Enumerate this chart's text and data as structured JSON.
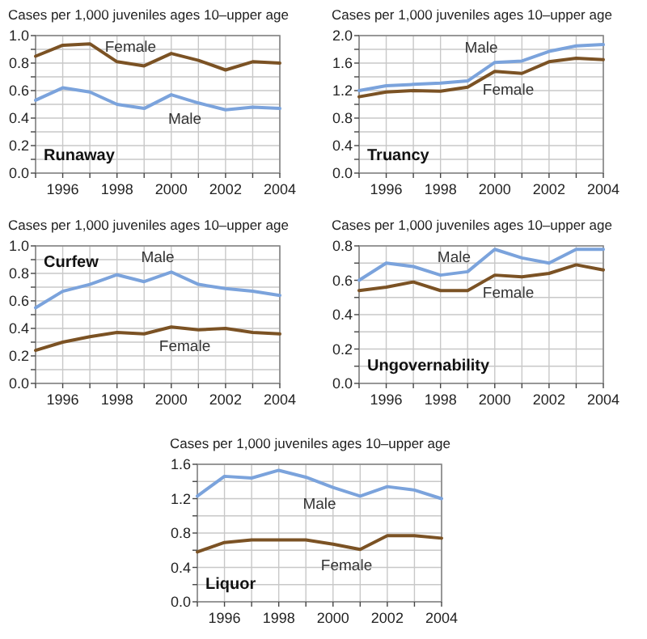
{
  "chart_data": [
    {
      "type": "line",
      "title": "Runaway",
      "ylabel": "Cases per 1,000 juveniles ages 10–upper age",
      "x": [
        1995,
        1996,
        1997,
        1998,
        1999,
        2000,
        2001,
        2002,
        2003,
        2004
      ],
      "xlim": [
        1995,
        2004
      ],
      "xticks": [
        {
          "value": 1995,
          "label": null
        },
        1996,
        {
          "value": 1997,
          "label": null
        },
        1998,
        {
          "value": 1999,
          "label": null
        },
        2000,
        {
          "value": 2001,
          "label": null
        },
        2002,
        {
          "value": 2003,
          "label": null
        },
        2004
      ],
      "ylim": [
        0,
        1
      ],
      "yticks": [
        {
          "value": 0,
          "label": "0.0"
        },
        {
          "value": 0.1,
          "label": null
        },
        {
          "value": 0.2,
          "label": "0.2"
        },
        {
          "value": 0.3,
          "label": null
        },
        {
          "value": 0.4,
          "label": "0.4"
        },
        {
          "value": 0.5,
          "label": null
        },
        {
          "value": 0.6,
          "label": "0.6"
        },
        {
          "value": 0.7,
          "label": null
        },
        {
          "value": 0.8,
          "label": "0.8"
        },
        {
          "value": 0.9,
          "label": null
        },
        {
          "value": 1,
          "label": "1.0"
        }
      ],
      "grid": true,
      "legend": false,
      "marker": "none",
      "series": [
        {
          "name": "Female",
          "color": "#7b5224",
          "values": [
            0.85,
            0.93,
            0.94,
            0.81,
            0.78,
            0.87,
            0.82,
            0.75,
            0.81,
            0.8
          ]
        },
        {
          "name": "Male",
          "color": "#7ba3dc",
          "values": [
            0.53,
            0.62,
            0.59,
            0.5,
            0.47,
            0.57,
            0.51,
            0.46,
            0.48,
            0.47
          ]
        }
      ]
    },
    {
      "type": "line",
      "title": "Truancy",
      "ylabel": "Cases per 1,000 juveniles ages 10–upper age",
      "x": [
        1995,
        1996,
        1997,
        1998,
        1999,
        2000,
        2001,
        2002,
        2003,
        2004
      ],
      "xlim": [
        1995,
        2004
      ],
      "xticks": [
        {
          "value": 1995,
          "label": null
        },
        1996,
        {
          "value": 1997,
          "label": null
        },
        1998,
        {
          "value": 1999,
          "label": null
        },
        2000,
        {
          "value": 2001,
          "label": null
        },
        2002,
        {
          "value": 2003,
          "label": null
        },
        2004
      ],
      "ylim": [
        0,
        2
      ],
      "yticks": [
        {
          "value": 0,
          "label": "0.0"
        },
        {
          "value": 0.2,
          "label": null
        },
        0.4,
        {
          "value": 0.6,
          "label": null
        },
        0.8,
        {
          "value": 1,
          "label": null
        },
        1.2,
        {
          "value": 1.4,
          "label": null
        },
        1.6,
        {
          "value": 1.8,
          "label": null
        },
        {
          "value": 2,
          "label": "2.0"
        }
      ],
      "grid": true,
      "legend": false,
      "marker": "none",
      "series": [
        {
          "name": "Male",
          "color": "#7ba3dc",
          "values": [
            1.2,
            1.27,
            1.29,
            1.31,
            1.34,
            1.61,
            1.63,
            1.77,
            1.85,
            1.87
          ]
        },
        {
          "name": "Female",
          "color": "#7b5224",
          "values": [
            1.11,
            1.18,
            1.2,
            1.19,
            1.25,
            1.48,
            1.45,
            1.62,
            1.67,
            1.65
          ]
        }
      ]
    },
    {
      "type": "line",
      "title": "Curfew",
      "ylabel": "Cases per 1,000 juveniles ages 10–upper age",
      "x": [
        1995,
        1996,
        1997,
        1998,
        1999,
        2000,
        2001,
        2002,
        2003,
        2004
      ],
      "xlim": [
        1995,
        2004
      ],
      "xticks": [
        {
          "value": 1995,
          "label": null
        },
        1996,
        {
          "value": 1997,
          "label": null
        },
        1998,
        {
          "value": 1999,
          "label": null
        },
        2000,
        {
          "value": 2001,
          "label": null
        },
        2002,
        {
          "value": 2003,
          "label": null
        },
        2004
      ],
      "ylim": [
        0,
        1
      ],
      "yticks": [
        {
          "value": 0,
          "label": "0.0"
        },
        {
          "value": 0.1,
          "label": null
        },
        0.2,
        {
          "value": 0.3,
          "label": null
        },
        0.4,
        {
          "value": 0.5,
          "label": null
        },
        0.6,
        {
          "value": 0.7,
          "label": null
        },
        0.8,
        {
          "value": 0.9,
          "label": null
        },
        {
          "value": 1,
          "label": "1.0"
        }
      ],
      "grid": true,
      "legend": false,
      "marker": "none",
      "series": [
        {
          "name": "Male",
          "color": "#7ba3dc",
          "values": [
            0.55,
            0.67,
            0.72,
            0.79,
            0.74,
            0.81,
            0.72,
            0.69,
            0.67,
            0.64
          ]
        },
        {
          "name": "Female",
          "color": "#7b5224",
          "values": [
            0.24,
            0.3,
            0.34,
            0.37,
            0.36,
            0.41,
            0.39,
            0.4,
            0.37,
            0.36
          ]
        }
      ]
    },
    {
      "type": "line",
      "title": "Ungovernability",
      "ylabel": "Cases per 1,000 juveniles ages 10–upper age",
      "x": [
        1995,
        1996,
        1997,
        1998,
        1999,
        2000,
        2001,
        2002,
        2003,
        2004
      ],
      "xlim": [
        1995,
        2004
      ],
      "xticks": [
        {
          "value": 1995,
          "label": null
        },
        1996,
        {
          "value": 1997,
          "label": null
        },
        1998,
        {
          "value": 1999,
          "label": null
        },
        2000,
        {
          "value": 2001,
          "label": null
        },
        2002,
        {
          "value": 2003,
          "label": null
        },
        2004
      ],
      "ylim": [
        0,
        0.8
      ],
      "yticks": [
        {
          "value": 0,
          "label": "0.0"
        },
        {
          "value": 0.1,
          "label": null
        },
        0.2,
        {
          "value": 0.3,
          "label": null
        },
        0.4,
        {
          "value": 0.5,
          "label": null
        },
        0.6,
        {
          "value": 0.7,
          "label": null
        },
        0.8
      ],
      "grid": true,
      "legend": false,
      "marker": "none",
      "series": [
        {
          "name": "Male",
          "color": "#7ba3dc",
          "values": [
            0.6,
            0.7,
            0.68,
            0.63,
            0.65,
            0.78,
            0.73,
            0.7,
            0.78,
            0.78
          ]
        },
        {
          "name": "Female",
          "color": "#7b5224",
          "values": [
            0.54,
            0.56,
            0.59,
            0.54,
            0.54,
            0.63,
            0.62,
            0.64,
            0.69,
            0.66
          ]
        }
      ]
    },
    {
      "type": "line",
      "title": "Liquor",
      "ylabel": "Cases per 1,000 juveniles ages 10–upper age",
      "x": [
        1995,
        1996,
        1997,
        1998,
        1999,
        2000,
        2001,
        2002,
        2003,
        2004
      ],
      "xlim": [
        1995,
        2004
      ],
      "xticks": [
        {
          "value": 1995,
          "label": null
        },
        1996,
        {
          "value": 1997,
          "label": null
        },
        1998,
        {
          "value": 1999,
          "label": null
        },
        2000,
        {
          "value": 2001,
          "label": null
        },
        2002,
        {
          "value": 2003,
          "label": null
        },
        2004
      ],
      "ylim": [
        0,
        1.6
      ],
      "yticks": [
        {
          "value": 0,
          "label": "0.0"
        },
        {
          "value": 0.2,
          "label": null
        },
        0.4,
        {
          "value": 0.6,
          "label": null
        },
        0.8,
        {
          "value": 1,
          "label": null
        },
        1.2,
        {
          "value": 1.4,
          "label": null
        },
        1.6
      ],
      "grid": true,
      "legend": false,
      "marker": "none",
      "series": [
        {
          "name": "Male",
          "color": "#7ba3dc",
          "values": [
            1.23,
            1.46,
            1.44,
            1.53,
            1.45,
            1.33,
            1.23,
            1.34,
            1.3,
            1.2
          ]
        },
        {
          "name": "Female",
          "color": "#7b5224",
          "values": [
            0.58,
            0.69,
            0.72,
            0.72,
            0.72,
            0.67,
            0.61,
            0.77,
            0.77,
            0.74
          ]
        }
      ]
    }
  ]
}
